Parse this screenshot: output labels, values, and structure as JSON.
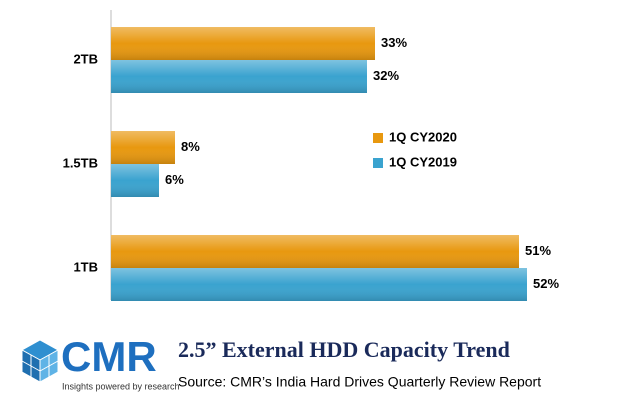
{
  "chart_data": {
    "type": "hbar",
    "title": "2.5” External HDD Capacity Trend",
    "source": "Source: CMR’s India Hard Drives Quarterly Review Report",
    "logo": {
      "name": "CMR",
      "tagline": "Insights powered by research"
    },
    "categories": [
      "2TB",
      "1.5TB",
      "1TB"
    ],
    "series": [
      {
        "name": "1Q CY2020",
        "color": "#e8980f",
        "values": [
          33,
          8,
          51
        ],
        "value_labels": [
          "33%",
          "8%",
          "51%"
        ]
      },
      {
        "name": "1Q CY2019",
        "color": "#3aa3cf",
        "values": [
          32,
          6,
          52
        ],
        "value_labels": [
          "32%",
          "6%",
          "52%"
        ]
      }
    ]
  }
}
